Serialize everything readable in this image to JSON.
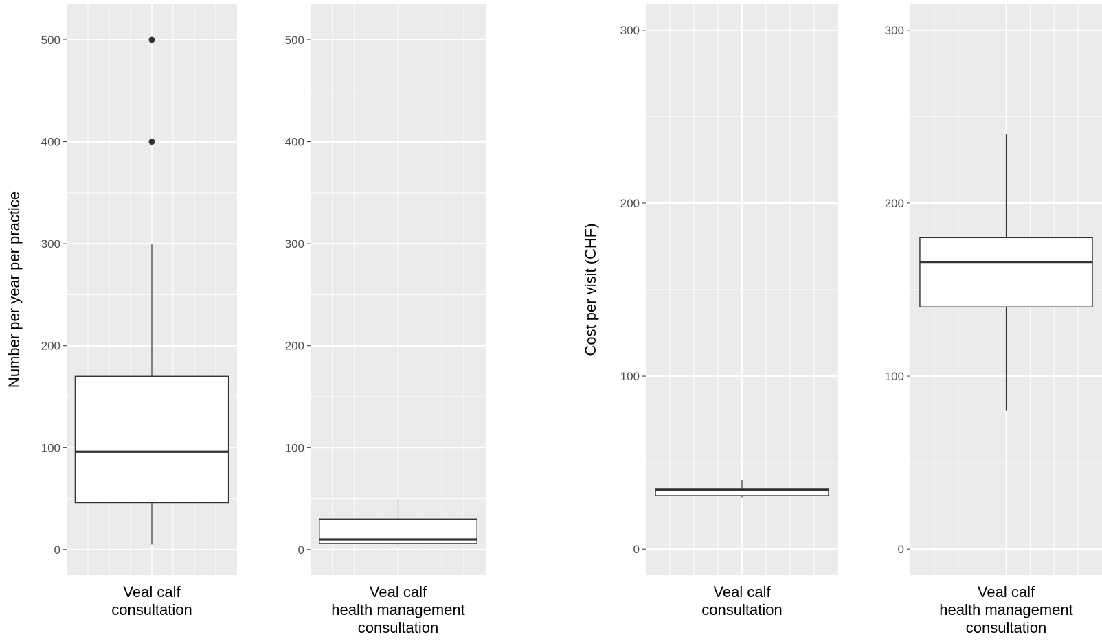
{
  "chart_data": [
    {
      "type": "boxplot",
      "ylabel": "Number per year per practice",
      "category": "Veal calf\nconsultation",
      "ylim": [
        -25,
        535
      ],
      "yticks": [
        0,
        100,
        200,
        300,
        400,
        500
      ],
      "box": {
        "min": 5,
        "q1": 46,
        "median": 96,
        "q3": 170,
        "max": 300
      },
      "outliers": [
        400,
        500
      ],
      "grid": true
    },
    {
      "type": "boxplot",
      "ylabel": "",
      "category": "Veal calf\nhealth management\nconsultation",
      "ylim": [
        -25,
        535
      ],
      "yticks": [
        0,
        100,
        200,
        300,
        400,
        500
      ],
      "box": {
        "min": 3,
        "q1": 6,
        "median": 10,
        "q3": 30,
        "max": 50
      },
      "outliers": [],
      "grid": true
    },
    {
      "type": "boxplot",
      "ylabel": "Cost per visit (CHF)",
      "category": "Veal calf\nconsultation",
      "ylim": [
        -15,
        315
      ],
      "yticks": [
        0,
        100,
        200,
        300
      ],
      "box": {
        "min": 30,
        "q1": 31,
        "median": 34,
        "q3": 35,
        "max": 40
      },
      "outliers": [],
      "grid": true
    },
    {
      "type": "boxplot",
      "ylabel": "",
      "category": "Veal calf\nhealth management\nconsultation",
      "ylim": [
        -15,
        315
      ],
      "yticks": [
        0,
        100,
        200,
        300
      ],
      "box": {
        "min": 80,
        "q1": 140,
        "median": 166,
        "q3": 180,
        "max": 240
      },
      "outliers": [],
      "grid": true
    }
  ],
  "colors": {
    "panel_background": "#ebebeb",
    "grid": "#ffffff",
    "box_fill": "#ffffff",
    "box_line": "#333333",
    "tick_text": "#4d4d4d"
  }
}
